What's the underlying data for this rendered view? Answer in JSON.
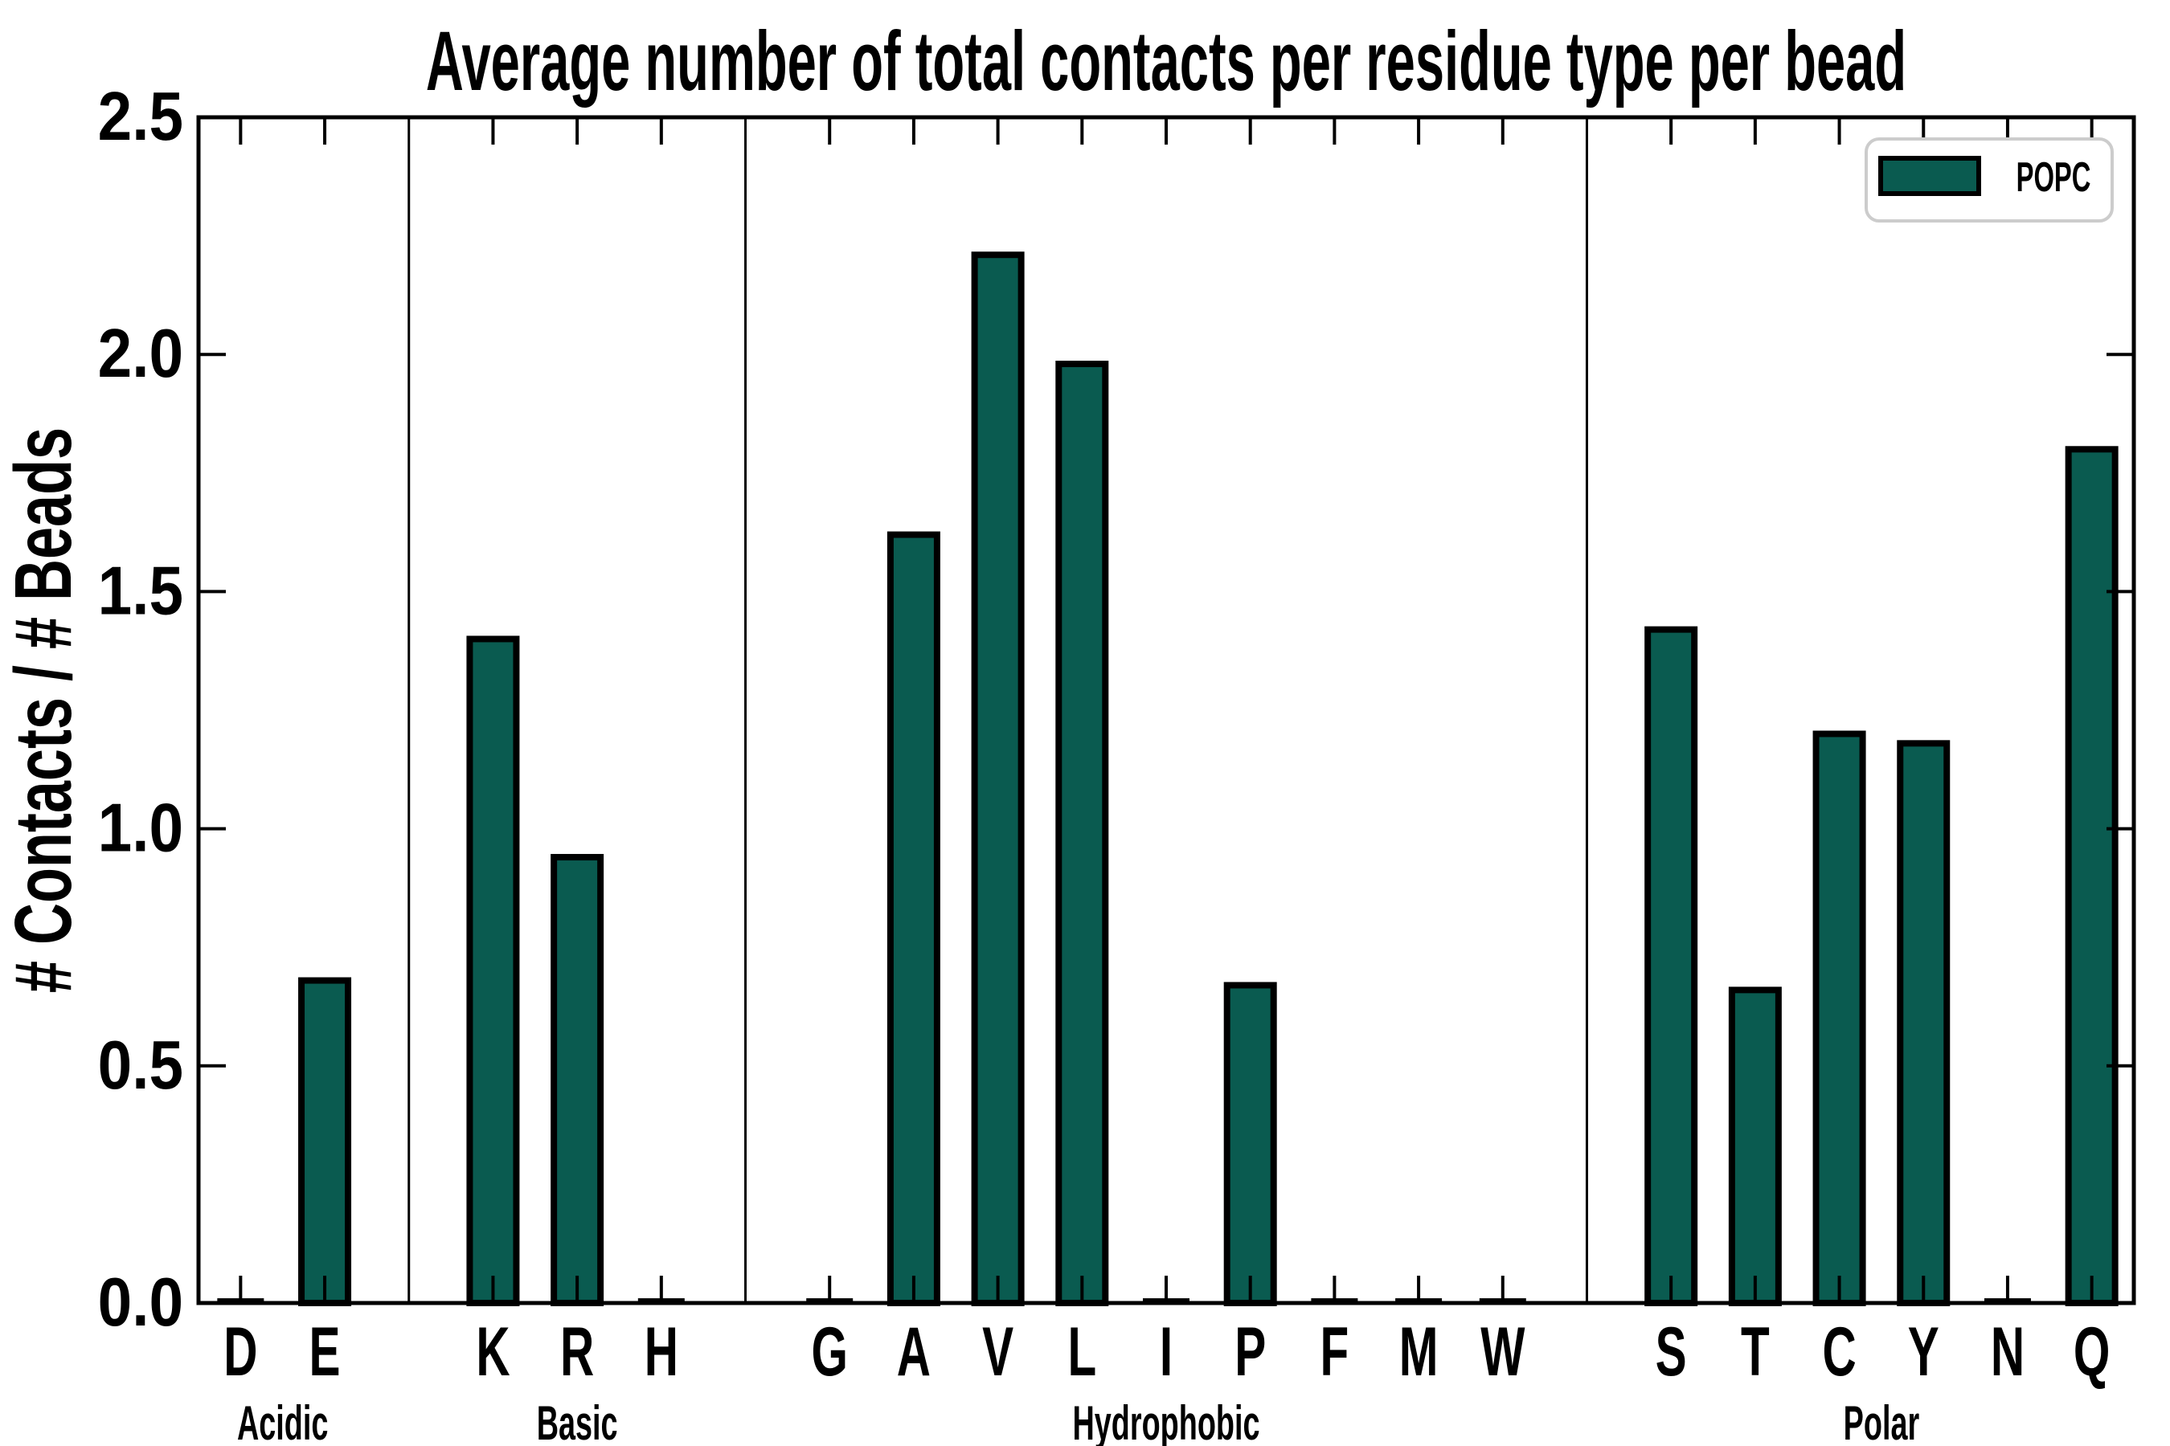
{
  "title": "Average number of total contacts per residue type per bead",
  "y_axis_label": "# Contacts / # Beads",
  "legend": {
    "label": "POPC",
    "position": "upper right"
  },
  "colors": {
    "bar_fill": "#0a5b50",
    "bar_edge": "#000000",
    "axis": "#000000",
    "text": "#000000",
    "legend_border": "#cccccc",
    "background": "#ffffff"
  },
  "chart_data": {
    "type": "bar",
    "title": "Average number of total contacts per residue type per bead",
    "xlabel": "",
    "ylabel": "# Contacts / # Beads",
    "ylim": [
      0,
      2.5
    ],
    "yticks": [
      0.0,
      0.5,
      1.0,
      1.5,
      2.0,
      2.5
    ],
    "grid": false,
    "legend_entries": [
      "POPC"
    ],
    "legend_position": "upper right",
    "series_name": "POPC",
    "groups": [
      {
        "label": "Acidic",
        "categories": [
          "D",
          "E"
        ],
        "values": [
          0.01,
          0.68
        ]
      },
      {
        "label": "Basic",
        "categories": [
          "K",
          "R",
          "H"
        ],
        "values": [
          1.4,
          0.94,
          0.01
        ]
      },
      {
        "label": "Hydrophobic",
        "categories": [
          "G",
          "A",
          "V",
          "L",
          "I",
          "P",
          "F",
          "M",
          "W"
        ],
        "values": [
          0.01,
          1.62,
          2.21,
          1.98,
          0.01,
          0.67,
          0.01,
          0.01,
          0.01
        ]
      },
      {
        "label": "Polar",
        "categories": [
          "S",
          "T",
          "C",
          "Y",
          "N",
          "Q"
        ],
        "values": [
          1.42,
          0.66,
          1.2,
          1.18,
          0.01,
          1.8
        ]
      }
    ]
  }
}
